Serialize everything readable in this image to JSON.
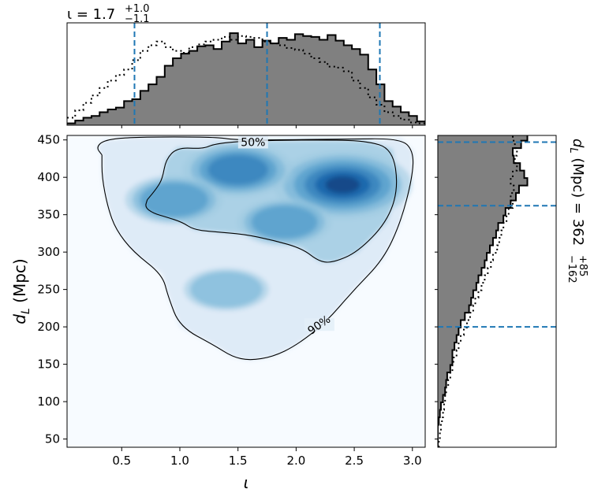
{
  "chart_data": [
    {
      "panel": "top-marginal",
      "type": "histogram",
      "title_symbol": "ι",
      "title_median": "1.7",
      "title_plus": "+1.0",
      "title_minus": "−1.1",
      "xlim": [
        0.03,
        3.11
      ],
      "posterior_median": 1.75,
      "credible_interval": [
        0.61,
        2.72
      ],
      "bin_edges": [
        0.03,
        0.1,
        0.17,
        0.24,
        0.31,
        0.38,
        0.45,
        0.52,
        0.59,
        0.66,
        0.73,
        0.8,
        0.87,
        0.94,
        1.01,
        1.08,
        1.15,
        1.22,
        1.29,
        1.36,
        1.43,
        1.5,
        1.57,
        1.64,
        1.71,
        1.78,
        1.85,
        1.92,
        1.99,
        2.06,
        2.13,
        2.2,
        2.27,
        2.34,
        2.41,
        2.48,
        2.55,
        2.62,
        2.69,
        2.76,
        2.83,
        2.9,
        2.97,
        3.04,
        3.11
      ],
      "series": [
        {
          "style": "filled-solid",
          "color": "#808080",
          "values": [
            0.02,
            0.05,
            0.08,
            0.1,
            0.14,
            0.17,
            0.19,
            0.26,
            0.28,
            0.37,
            0.44,
            0.52,
            0.64,
            0.72,
            0.77,
            0.8,
            0.85,
            0.86,
            0.82,
            0.9,
            0.99,
            0.88,
            0.92,
            0.84,
            0.91,
            0.88,
            0.94,
            0.92,
            0.98,
            0.96,
            0.95,
            0.92,
            0.97,
            0.91,
            0.86,
            0.82,
            0.76,
            0.6,
            0.44,
            0.26,
            0.2,
            0.14,
            0.1,
            0.04
          ]
        },
        {
          "style": "dotted",
          "color": "#000000",
          "values": [
            0.08,
            0.16,
            0.24,
            0.32,
            0.4,
            0.48,
            0.54,
            0.6,
            0.7,
            0.8,
            0.86,
            0.9,
            0.84,
            0.8,
            0.78,
            0.84,
            0.87,
            0.9,
            0.92,
            0.95,
            0.92,
            0.96,
            0.95,
            0.94,
            0.9,
            0.88,
            0.86,
            0.83,
            0.81,
            0.77,
            0.72,
            0.68,
            0.63,
            0.62,
            0.58,
            0.48,
            0.4,
            0.3,
            0.22,
            0.14,
            0.1,
            0.06,
            0.03,
            0.02
          ]
        }
      ]
    },
    {
      "panel": "joint-density",
      "type": "heatmap",
      "xlabel": "ι",
      "ylabel": "d_L (Mpc)",
      "ylabel_main": "d",
      "ylabel_sub": "L",
      "ylabel_unit": " (Mpc)",
      "xlim": [
        0.03,
        3.11
      ],
      "ylim": [
        39,
        456
      ],
      "xticks": [
        0.5,
        1.0,
        1.5,
        2.0,
        2.5,
        3.0
      ],
      "xtick_labels": [
        "0.5",
        "1.0",
        "1.5",
        "2.0",
        "2.5",
        "3.0"
      ],
      "yticks": [
        50,
        100,
        150,
        200,
        250,
        300,
        350,
        400,
        450
      ],
      "ytick_labels": [
        "50",
        "100",
        "150",
        "200",
        "250",
        "300",
        "350",
        "400",
        "450"
      ],
      "colormap": "Blues",
      "density_peaks": [
        {
          "x": 2.4,
          "y": 390,
          "weight": 1.0
        },
        {
          "x": 1.5,
          "y": 410,
          "weight": 0.55
        },
        {
          "x": 0.95,
          "y": 370,
          "weight": 0.35
        },
        {
          "x": 1.9,
          "y": 340,
          "weight": 0.3
        },
        {
          "x": 1.4,
          "y": 250,
          "weight": 0.15
        }
      ],
      "contours": [
        {
          "label": "50%",
          "label_position": {
            "x": 1.63,
            "y": 446
          },
          "path": [
            [
              0.72,
              370
            ],
            [
              0.7,
              360
            ],
            [
              0.77,
              352
            ],
            [
              0.88,
              347
            ],
            [
              1.02,
              340
            ],
            [
              1.12,
              330
            ],
            [
              1.3,
              327
            ],
            [
              1.55,
              324
            ],
            [
              1.8,
              316
            ],
            [
              2.05,
              305
            ],
            [
              2.2,
              287
            ],
            [
              2.32,
              286
            ],
            [
              2.53,
              300
            ],
            [
              2.78,
              340
            ],
            [
              2.88,
              385
            ],
            [
              2.83,
              438
            ],
            [
              2.6,
              449
            ],
            [
              2.2,
              450
            ],
            [
              1.6,
              449
            ],
            [
              1.3,
              445
            ],
            [
              1.2,
              438
            ],
            [
              0.98,
              440
            ],
            [
              0.88,
              424
            ],
            [
              0.85,
              398
            ],
            [
              0.8,
              385
            ],
            [
              0.72,
              370
            ]
          ]
        },
        {
          "label": "90%",
          "label_position": {
            "x": 2.2,
            "y": 202
          },
          "path": [
            [
              0.33,
              430
            ],
            [
              0.28,
              440
            ],
            [
              0.35,
              450
            ],
            [
              0.6,
              454
            ],
            [
              1.3,
              454
            ],
            [
              1.48,
              450
            ],
            [
              1.8,
              450
            ],
            [
              2.4,
              451
            ],
            [
              2.9,
              452
            ],
            [
              3.01,
              435
            ],
            [
              3.0,
              400
            ],
            [
              2.9,
              340
            ],
            [
              2.75,
              290
            ],
            [
              2.5,
              250
            ],
            [
              2.25,
              205
            ],
            [
              2.0,
              175
            ],
            [
              1.8,
              160
            ],
            [
              1.6,
              155
            ],
            [
              1.45,
              160
            ],
            [
              1.3,
              175
            ],
            [
              1.0,
              200
            ],
            [
              0.9,
              240
            ],
            [
              0.85,
              270
            ],
            [
              0.6,
              300
            ],
            [
              0.45,
              330
            ],
            [
              0.38,
              360
            ],
            [
              0.33,
              400
            ],
            [
              0.33,
              430
            ]
          ]
        }
      ]
    },
    {
      "panel": "right-marginal",
      "type": "histogram",
      "title_symbol": "d",
      "title_sub": "L",
      "title_unit": "(Mpc) = 362",
      "title_plus": "+85",
      "title_minus": "−162",
      "ylim": [
        39,
        456
      ],
      "posterior_median": 362,
      "credible_interval": [
        200,
        447
      ],
      "bin_edges": [
        39,
        49,
        59,
        69,
        79,
        89,
        99,
        109,
        119,
        129,
        139,
        149,
        159,
        169,
        179,
        189,
        199,
        209,
        219,
        229,
        239,
        249,
        259,
        269,
        279,
        289,
        299,
        309,
        319,
        329,
        339,
        349,
        359,
        369,
        379,
        389,
        399,
        409,
        419,
        429,
        439,
        449,
        456
      ],
      "series": [
        {
          "style": "filled-solid",
          "color": "#808080",
          "values": [
            0.0,
            0.0,
            0.0,
            0.01,
            0.02,
            0.03,
            0.05,
            0.07,
            0.08,
            0.09,
            0.12,
            0.14,
            0.14,
            0.16,
            0.18,
            0.2,
            0.22,
            0.26,
            0.3,
            0.32,
            0.34,
            0.37,
            0.39,
            0.42,
            0.45,
            0.47,
            0.5,
            0.53,
            0.56,
            0.58,
            0.63,
            0.65,
            0.7,
            0.75,
            0.78,
            0.86,
            0.83,
            0.79,
            0.73,
            0.72,
            0.8,
            0.86
          ]
        },
        {
          "style": "dotted",
          "color": "#000000",
          "values": [
            0.01,
            0.02,
            0.03,
            0.04,
            0.05,
            0.06,
            0.07,
            0.08,
            0.1,
            0.12,
            0.14,
            0.15,
            0.18,
            0.2,
            0.22,
            0.25,
            0.28,
            0.31,
            0.34,
            0.36,
            0.39,
            0.42,
            0.45,
            0.48,
            0.51,
            0.53,
            0.57,
            0.59,
            0.61,
            0.63,
            0.66,
            0.68,
            0.72,
            0.7,
            0.73,
            0.7,
            0.72,
            0.76,
            0.74,
            0.76,
            0.74,
            0.72
          ]
        }
      ]
    }
  ]
}
